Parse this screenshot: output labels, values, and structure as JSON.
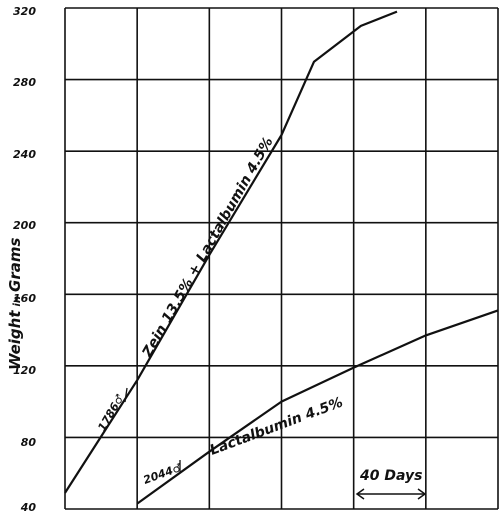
{
  "chart_data": {
    "type": "line",
    "ylabel_parts": [
      "Weight",
      "in",
      "Grams"
    ],
    "ylim": [
      40,
      320
    ],
    "yticks": [
      "40",
      "80",
      "120",
      "160",
      "200",
      "240",
      "280",
      "320"
    ],
    "x_grid_divisions": 6,
    "x_span": [
      0,
      6
    ],
    "grid": true,
    "series": [
      {
        "name": "Zein 13.5% + Lactalbumin 4.5%",
        "points": [
          [
            0,
            49
          ],
          [
            1,
            112
          ],
          [
            2.0,
            182
          ],
          [
            3,
            249
          ],
          [
            3.45,
            290
          ],
          [
            4.1,
            310
          ],
          [
            4.6,
            318
          ]
        ]
      },
      {
        "name": "Lactalbumin 4.5%",
        "points": [
          [
            1,
            43
          ],
          [
            2,
            72
          ],
          [
            3,
            100
          ],
          [
            4,
            119
          ],
          [
            5,
            137
          ],
          [
            6,
            151
          ]
        ]
      }
    ],
    "annotations": {
      "rat1": "1786♂",
      "rat2": "2044♂",
      "days": "40 Days"
    }
  }
}
